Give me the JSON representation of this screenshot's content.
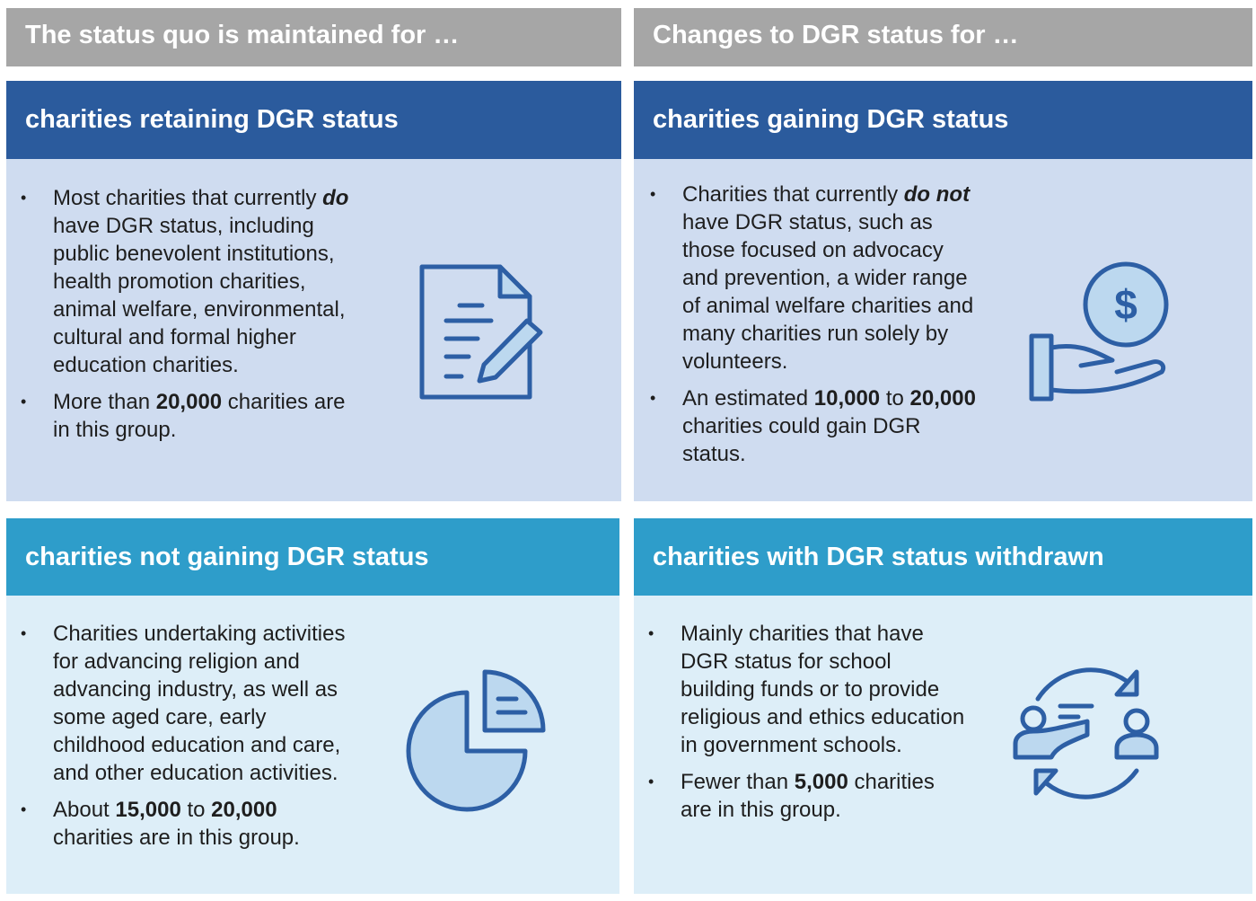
{
  "columns": [
    {
      "header": "The status quo is maintained for …"
    },
    {
      "header": "Changes to DGR status for …"
    }
  ],
  "panels": [
    {
      "title": "charities retaining DGR status",
      "bullets": [
        [
          {
            "text": "Most charities that currently "
          },
          {
            "bold_italic": "do"
          },
          {
            "text": " have DGR status, including public benevolent institutions, health promotion charities, animal welfare, environmental, cultural and formal higher education charities."
          }
        ],
        [
          {
            "text": "More than "
          },
          {
            "bold": "20,000"
          },
          {
            "text": " charities are in this group."
          }
        ]
      ]
    },
    {
      "title": "charities gaining DGR status",
      "bullets": [
        [
          {
            "text": "Charities that currently "
          },
          {
            "bold_italic": "do not"
          },
          {
            "text": " have DGR status, such as those focused on advocacy and prevention, a wider range of animal welfare charities and many charities run solely by volunteers."
          }
        ],
        [
          {
            "text": "An estimated "
          },
          {
            "bold": "10,000"
          },
          {
            "text": " to "
          },
          {
            "bold": "20,000"
          },
          {
            "text": " charities could gain DGR status."
          }
        ]
      ]
    },
    {
      "title": "charities not gaining DGR status",
      "bullets": [
        [
          {
            "text": "Charities undertaking activities for advancing religion and advancing industry, as well as some aged care, early childhood education and care, and other education activities."
          }
        ],
        [
          {
            "text": "About "
          },
          {
            "bold": "15,000"
          },
          {
            "text": " to "
          },
          {
            "bold": "20,000"
          },
          {
            "text": " charities are in this group."
          }
        ]
      ]
    },
    {
      "title": "charities with DGR status withdrawn",
      "bullets": [
        [
          {
            "text": "Mainly charities that have DGR status for school building funds or to provide religious and ethics education in government schools."
          }
        ],
        [
          {
            "text": "Fewer than "
          },
          {
            "bold": "5,000"
          },
          {
            "text": " charities are in this group."
          }
        ]
      ]
    }
  ]
}
